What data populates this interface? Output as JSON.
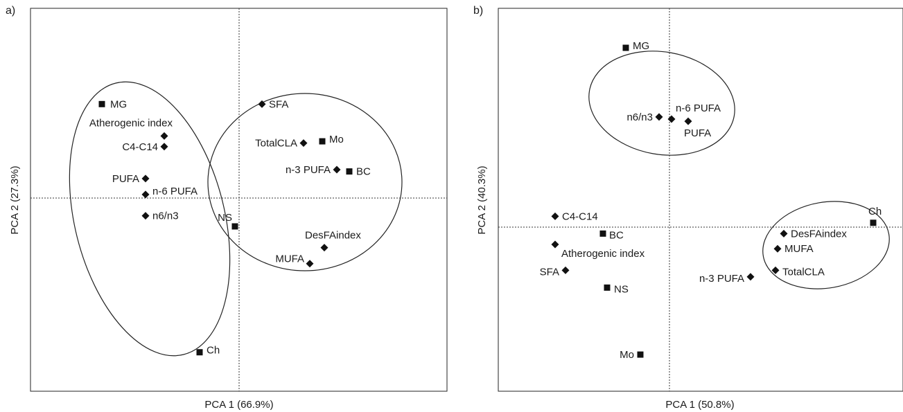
{
  "chart_data": [
    {
      "type": "scatter",
      "panel_label": "a)",
      "xlabel": "PCA 1 (66.9%)",
      "ylabel": "PCA 2 (27.3%)",
      "grid": false,
      "reference_lines": [
        "x = 0 (dashed)",
        "y = 0 (dashed)"
      ],
      "points": [
        {
          "label": "MG",
          "marker": "square",
          "x": -0.66,
          "y": 0.53
        },
        {
          "label": "Atherogenic index",
          "marker": "diamond",
          "x": -0.36,
          "y": 0.35
        },
        {
          "label": "C4-C14",
          "marker": "diamond",
          "x": -0.36,
          "y": 0.29
        },
        {
          "label": "PUFA",
          "marker": "diamond",
          "x": -0.45,
          "y": 0.11
        },
        {
          "label": "n-6 PUFA",
          "marker": "diamond",
          "x": -0.45,
          "y": 0.02
        },
        {
          "label": "n6/n3",
          "marker": "diamond",
          "x": -0.45,
          "y": -0.1
        },
        {
          "label": "Ch",
          "marker": "square",
          "x": -0.19,
          "y": -0.87
        },
        {
          "label": "SFA",
          "marker": "diamond",
          "x": 0.11,
          "y": 0.53
        },
        {
          "label": "TotalCLA",
          "marker": "diamond",
          "x": 0.31,
          "y": 0.31
        },
        {
          "label": "Mo",
          "marker": "square",
          "x": 0.4,
          "y": 0.32
        },
        {
          "label": "n-3 PUFA",
          "marker": "diamond",
          "x": 0.47,
          "y": 0.16
        },
        {
          "label": "BC",
          "marker": "square",
          "x": 0.53,
          "y": 0.15
        },
        {
          "label": "NS",
          "marker": "square",
          "x": -0.02,
          "y": -0.16
        },
        {
          "label": "DesFAindex",
          "marker": "diamond",
          "x": 0.41,
          "y": -0.28
        },
        {
          "label": "MUFA",
          "marker": "diamond",
          "x": 0.34,
          "y": -0.37
        }
      ],
      "groups": [
        [
          "MG",
          "Atherogenic index",
          "C4-C14",
          "PUFA",
          "n-6 PUFA",
          "n6/n3",
          "Ch"
        ],
        [
          "SFA",
          "TotalCLA",
          "Mo",
          "n-3 PUFA",
          "BC",
          "NS",
          "DesFAindex",
          "MUFA"
        ]
      ]
    },
    {
      "type": "scatter",
      "panel_label": "b)",
      "xlabel": "PCA 1 (50.8%)",
      "ylabel": "PCA 2 (40.3%)",
      "grid": false,
      "reference_lines": [
        "x = 0 (dashed)",
        "y = 0 (dashed)"
      ],
      "points": [
        {
          "label": "MG",
          "marker": "square",
          "x": -0.21,
          "y": 0.83
        },
        {
          "label": "n6/n3",
          "marker": "diamond",
          "x": -0.05,
          "y": 0.51
        },
        {
          "label": "n-6 PUFA",
          "marker": "diamond",
          "x": 0.01,
          "y": 0.5
        },
        {
          "label": "PUFA",
          "marker": "diamond",
          "x": 0.09,
          "y": 0.49
        },
        {
          "label": "Ch",
          "marker": "square",
          "x": 0.98,
          "y": 0.02
        },
        {
          "label": "DesFAindex",
          "marker": "diamond",
          "x": 0.55,
          "y": -0.03
        },
        {
          "label": "MUFA",
          "marker": "diamond",
          "x": 0.52,
          "y": -0.1
        },
        {
          "label": "TotalCLA",
          "marker": "diamond",
          "x": 0.51,
          "y": -0.2
        },
        {
          "label": "n-3 PUFA",
          "marker": "diamond",
          "x": 0.39,
          "y": -0.23
        },
        {
          "label": "C4-C14",
          "marker": "diamond",
          "x": -0.55,
          "y": 0.05
        },
        {
          "label": "BC",
          "marker": "square",
          "x": -0.32,
          "y": -0.03
        },
        {
          "label": "Atherogenic index",
          "marker": "diamond",
          "x": -0.55,
          "y": -0.08
        },
        {
          "label": "SFA",
          "marker": "diamond",
          "x": -0.5,
          "y": -0.2
        },
        {
          "label": "NS",
          "marker": "square",
          "x": -0.3,
          "y": -0.28
        },
        {
          "label": "Mo",
          "marker": "square",
          "x": -0.14,
          "y": -0.59
        }
      ],
      "groups": [
        [
          "MG",
          "n6/n3",
          "n-6 PUFA",
          "PUFA"
        ],
        [
          "Ch",
          "DesFAindex",
          "MUFA",
          "TotalCLA"
        ]
      ]
    }
  ]
}
